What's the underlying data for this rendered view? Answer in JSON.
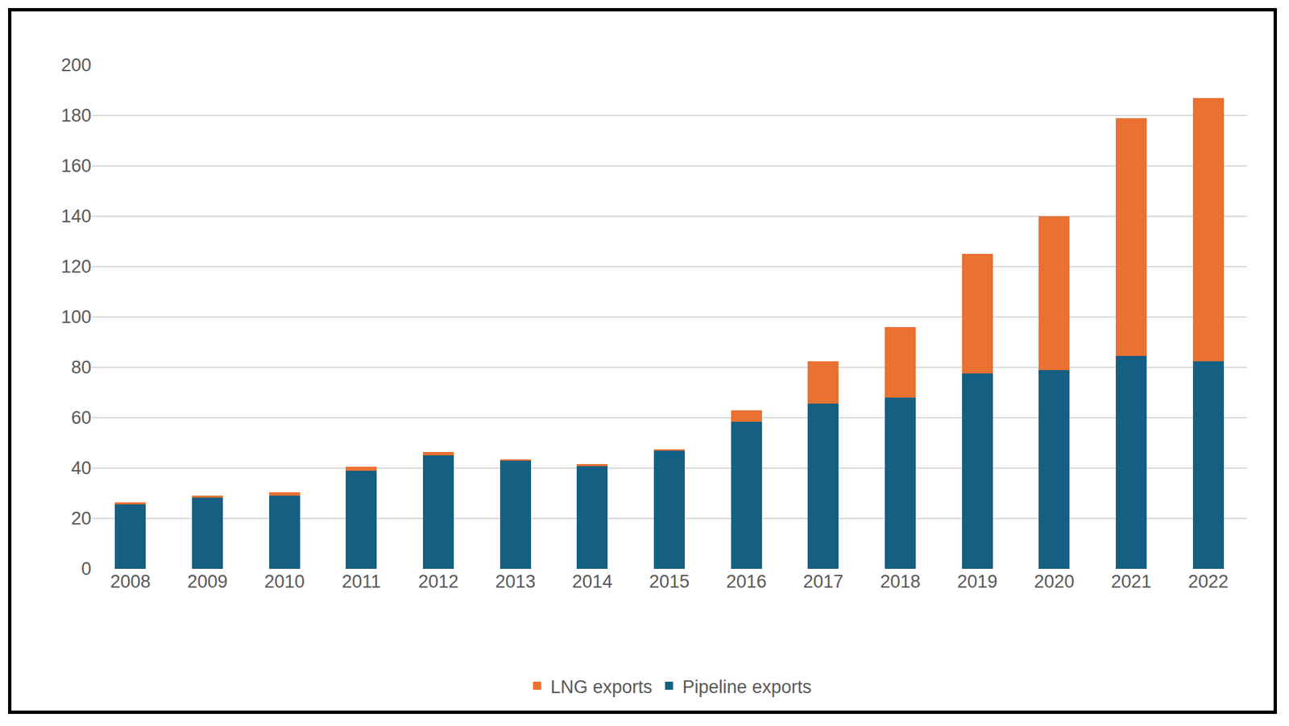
{
  "chart_data": {
    "type": "bar",
    "stacked": true,
    "categories": [
      "2008",
      "2009",
      "2010",
      "2011",
      "2012",
      "2013",
      "2014",
      "2015",
      "2016",
      "2017",
      "2018",
      "2019",
      "2020",
      "2021",
      "2022"
    ],
    "series": [
      {
        "name": "Pipeline exports",
        "color": "#156082",
        "values": [
          25.5,
          28.5,
          29,
          39,
          45,
          43,
          41,
          47,
          58.5,
          65.5,
          68,
          77.5,
          79,
          84.5,
          82.5
        ]
      },
      {
        "name": "LNG exports",
        "color": "#e97132",
        "values": [
          1,
          0.5,
          1.5,
          1.5,
          1.5,
          0.5,
          0.5,
          0.5,
          4.5,
          17,
          28,
          47.5,
          61,
          94.5,
          104.5
        ]
      }
    ],
    "ylim": [
      0,
      200
    ],
    "yticks": [
      0,
      20,
      40,
      60,
      80,
      100,
      120,
      140,
      160,
      180,
      200
    ],
    "grid": true,
    "legend": "bottom"
  }
}
